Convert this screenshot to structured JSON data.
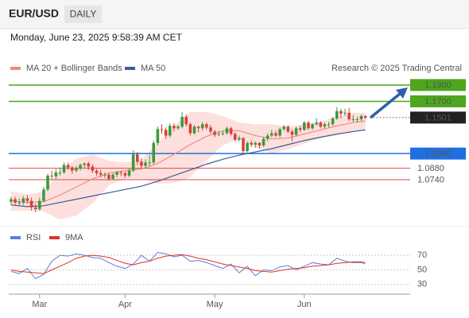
{
  "header": {
    "symbol": "EUR/USD",
    "period": "DAILY",
    "timestamp": "Monday, June 23, 2025 9:58:39 AM CET"
  },
  "chart_data": [
    {
      "type": "candlestick",
      "credit": "Research © 2025 Trading Central",
      "xlim": [
        -0.5,
        98
      ],
      "ylim": [
        1.02,
        1.2
      ],
      "up_color": "#3a9a3a",
      "down_color": "#d8403a",
      "band_color": "#fde0de",
      "candles": {
        "open": [
          1.047,
          1.05,
          1.046,
          1.046,
          1.051,
          1.048,
          1.04,
          1.038,
          1.048,
          1.062,
          1.079,
          1.078,
          1.083,
          1.083,
          1.092,
          1.089,
          1.085,
          1.088,
          1.092,
          1.094,
          1.09,
          1.085,
          1.082,
          1.08,
          1.08,
          1.075,
          1.08,
          1.083,
          1.082,
          1.079,
          1.085,
          1.105,
          1.096,
          1.091,
          1.095,
          1.095,
          1.119,
          1.136,
          1.135,
          1.128,
          1.14,
          1.137,
          1.139,
          1.151,
          1.142,
          1.131,
          1.139,
          1.137,
          1.142,
          1.138,
          1.133,
          1.129,
          1.13,
          1.131,
          1.137,
          1.13,
          1.123,
          1.125,
          1.109,
          1.119,
          1.117,
          1.119,
          1.116,
          1.124,
          1.128,
          1.131,
          1.128,
          1.136,
          1.139,
          1.133,
          1.129,
          1.137,
          1.135,
          1.144,
          1.137,
          1.142,
          1.144,
          1.139,
          1.142,
          1.142,
          1.149,
          1.158,
          1.155,
          1.156,
          1.148,
          1.148,
          1.148,
          1.152
        ],
        "high": [
          1.053,
          1.053,
          1.051,
          1.054,
          1.055,
          1.052,
          1.044,
          1.052,
          1.065,
          1.081,
          1.085,
          1.087,
          1.089,
          1.095,
          1.095,
          1.091,
          1.091,
          1.094,
          1.095,
          1.096,
          1.093,
          1.087,
          1.086,
          1.083,
          1.082,
          1.082,
          1.085,
          1.085,
          1.084,
          1.088,
          1.11,
          1.108,
          1.1,
          1.099,
          1.104,
          1.122,
          1.139,
          1.142,
          1.138,
          1.143,
          1.143,
          1.141,
          1.157,
          1.154,
          1.144,
          1.141,
          1.14,
          1.145,
          1.144,
          1.141,
          1.135,
          1.134,
          1.134,
          1.139,
          1.139,
          1.132,
          1.128,
          1.126,
          1.121,
          1.122,
          1.121,
          1.12,
          1.126,
          1.131,
          1.135,
          1.134,
          1.138,
          1.141,
          1.141,
          1.135,
          1.139,
          1.14,
          1.146,
          1.146,
          1.143,
          1.149,
          1.146,
          1.144,
          1.145,
          1.151,
          1.163,
          1.161,
          1.161,
          1.162,
          1.153,
          1.151,
          1.154,
          1.153
        ],
        "low": [
          1.043,
          1.043,
          1.042,
          1.043,
          1.045,
          1.036,
          1.034,
          1.036,
          1.046,
          1.06,
          1.074,
          1.075,
          1.079,
          1.081,
          1.086,
          1.081,
          1.083,
          1.085,
          1.088,
          1.086,
          1.082,
          1.079,
          1.077,
          1.076,
          1.073,
          1.074,
          1.077,
          1.078,
          1.076,
          1.077,
          1.083,
          1.092,
          1.088,
          1.087,
          1.09,
          1.093,
          1.116,
          1.13,
          1.124,
          1.126,
          1.133,
          1.135,
          1.137,
          1.139,
          1.128,
          1.129,
          1.132,
          1.134,
          1.135,
          1.13,
          1.126,
          1.127,
          1.128,
          1.129,
          1.128,
          1.121,
          1.121,
          1.106,
          1.107,
          1.114,
          1.113,
          1.112,
          1.114,
          1.121,
          1.126,
          1.126,
          1.126,
          1.134,
          1.131,
          1.121,
          1.127,
          1.132,
          1.134,
          1.135,
          1.135,
          1.14,
          1.137,
          1.137,
          1.138,
          1.14,
          1.147,
          1.149,
          1.152,
          1.146,
          1.145,
          1.144,
          1.146,
          1.148
        ],
        "close": [
          1.05,
          1.046,
          1.046,
          1.051,
          1.048,
          1.04,
          1.038,
          1.048,
          1.062,
          1.079,
          1.078,
          1.083,
          1.083,
          1.092,
          1.089,
          1.085,
          1.088,
          1.092,
          1.094,
          1.09,
          1.085,
          1.082,
          1.08,
          1.08,
          1.075,
          1.08,
          1.083,
          1.082,
          1.079,
          1.085,
          1.105,
          1.096,
          1.091,
          1.095,
          1.095,
          1.119,
          1.136,
          1.135,
          1.128,
          1.14,
          1.137,
          1.139,
          1.151,
          1.142,
          1.131,
          1.139,
          1.137,
          1.142,
          1.138,
          1.133,
          1.129,
          1.13,
          1.131,
          1.137,
          1.13,
          1.123,
          1.125,
          1.109,
          1.119,
          1.117,
          1.119,
          1.116,
          1.124,
          1.128,
          1.131,
          1.128,
          1.136,
          1.139,
          1.133,
          1.129,
          1.137,
          1.135,
          1.144,
          1.137,
          1.142,
          1.144,
          1.139,
          1.142,
          1.142,
          1.149,
          1.158,
          1.155,
          1.156,
          1.148,
          1.148,
          1.148,
          1.152,
          1.15
        ]
      },
      "overlays": [
        {
          "name": "MA 20 + Bollinger Bands",
          "color": "#f08a80",
          "x": [
            0,
            4,
            8,
            12,
            16,
            20,
            24,
            28,
            32,
            36,
            40,
            44,
            48,
            52,
            56,
            60,
            64,
            68,
            72,
            76,
            80,
            84,
            87
          ],
          "values": [
            1.048,
            1.046,
            1.047,
            1.055,
            1.065,
            1.075,
            1.082,
            1.085,
            1.087,
            1.094,
            1.105,
            1.117,
            1.127,
            1.134,
            1.134,
            1.128,
            1.124,
            1.125,
            1.13,
            1.135,
            1.14,
            1.144,
            1.146
          ],
          "upper": [
            1.06,
            1.056,
            1.059,
            1.085,
            1.1,
            1.105,
            1.097,
            1.095,
            1.099,
            1.119,
            1.14,
            1.157,
            1.157,
            1.152,
            1.144,
            1.142,
            1.142,
            1.139,
            1.142,
            1.145,
            1.152,
            1.156,
            1.156
          ],
          "lower": [
            1.036,
            1.036,
            1.035,
            1.025,
            1.03,
            1.045,
            1.067,
            1.075,
            1.075,
            1.069,
            1.07,
            1.077,
            1.097,
            1.116,
            1.124,
            1.114,
            1.106,
            1.111,
            1.118,
            1.125,
            1.128,
            1.132,
            1.136
          ]
        },
        {
          "name": "MA 50",
          "color": "#3d5a99",
          "x": [
            0,
            4,
            8,
            12,
            16,
            20,
            24,
            28,
            32,
            36,
            40,
            44,
            48,
            52,
            56,
            60,
            64,
            68,
            72,
            76,
            80,
            84,
            87
          ],
          "values": [
            1.043,
            1.041,
            1.042,
            1.046,
            1.05,
            1.054,
            1.058,
            1.062,
            1.066,
            1.072,
            1.079,
            1.086,
            1.093,
            1.099,
            1.104,
            1.108,
            1.112,
            1.117,
            1.122,
            1.126,
            1.13,
            1.133,
            1.135
          ]
        }
      ],
      "levels": [
        {
          "value": 1.19,
          "label": "1.1900",
          "color": "#4da61c",
          "boxed": true,
          "line": "solid"
        },
        {
          "value": 1.17,
          "label": "1.1700",
          "color": "#4da61c",
          "boxed": true,
          "line": "solid"
        },
        {
          "value": 1.1501,
          "label": "1.1501",
          "color": "#222222",
          "boxed": true,
          "line": "dotted"
        },
        {
          "value": 1.106,
          "label": "1.1060",
          "color": "#1f6fe0",
          "boxed": true,
          "line": "solid"
        },
        {
          "value": 1.088,
          "label": "1.0880",
          "color": "#e0464a",
          "boxed": false,
          "line": "solid"
        },
        {
          "value": 1.074,
          "label": "1.0740",
          "color": "#e0464a",
          "boxed": false,
          "line": "solid"
        }
      ]
    },
    {
      "type": "line",
      "xlim": [
        -0.5,
        98
      ],
      "ylim": [
        20,
        80
      ],
      "yticks": [
        30,
        50,
        70
      ],
      "grid": true,
      "xticks": [
        {
          "value": 7,
          "label": "Mar"
        },
        {
          "value": 28,
          "label": "Apr"
        },
        {
          "value": 50,
          "label": "May"
        },
        {
          "value": 72,
          "label": "Jun"
        }
      ],
      "series": [
        {
          "name": "RSI",
          "color": "#5b7fd6",
          "x": [
            0,
            2,
            4,
            6,
            8,
            10,
            12,
            14,
            16,
            18,
            20,
            22,
            24,
            26,
            28,
            30,
            32,
            34,
            36,
            38,
            40,
            42,
            44,
            46,
            48,
            50,
            52,
            54,
            56,
            58,
            60,
            62,
            64,
            66,
            68,
            70,
            72,
            74,
            76,
            78,
            80,
            82,
            84,
            86,
            87
          ],
          "values": [
            48,
            45,
            52,
            38,
            44,
            62,
            70,
            69,
            72,
            70,
            67,
            66,
            60,
            55,
            52,
            58,
            70,
            62,
            74,
            72,
            68,
            70,
            62,
            63,
            60,
            56,
            52,
            58,
            46,
            55,
            42,
            50,
            49,
            54,
            56,
            50,
            55,
            60,
            58,
            57,
            66,
            62,
            60,
            60,
            58
          ]
        },
        {
          "name": "9MA",
          "color": "#e03030",
          "x": [
            0,
            2,
            4,
            6,
            8,
            10,
            12,
            14,
            16,
            18,
            20,
            22,
            24,
            26,
            28,
            30,
            32,
            34,
            36,
            38,
            40,
            42,
            44,
            46,
            48,
            50,
            52,
            54,
            56,
            58,
            60,
            62,
            64,
            66,
            68,
            70,
            72,
            74,
            76,
            78,
            80,
            82,
            84,
            86,
            87
          ],
          "values": [
            50,
            48,
            47,
            46,
            45,
            50,
            55,
            60,
            66,
            69,
            70,
            69,
            67,
            63,
            59,
            57,
            60,
            62,
            66,
            69,
            70,
            71,
            69,
            66,
            64,
            61,
            58,
            56,
            54,
            52,
            49,
            48,
            47,
            49,
            51,
            52,
            53,
            55,
            56,
            57,
            59,
            60,
            61,
            61,
            60
          ]
        }
      ]
    }
  ]
}
